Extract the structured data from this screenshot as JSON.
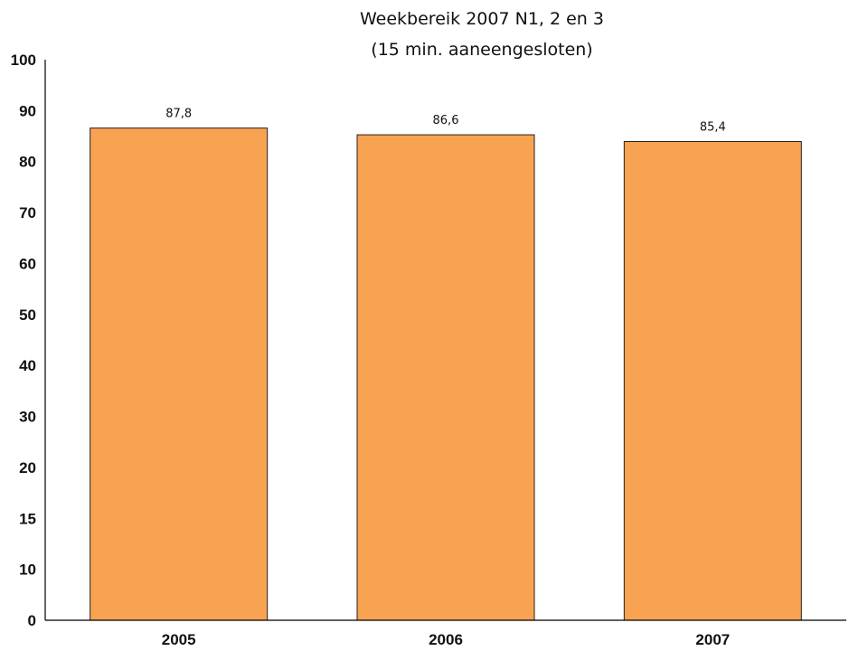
{
  "chart_data": {
    "type": "bar",
    "title": "Weekbereik 2007 N1, 2 en 3",
    "subtitle": "(15 min. aaneengesloten)",
    "categories": [
      "2005",
      "2006",
      "2007"
    ],
    "values": [
      87.8,
      86.6,
      85.4
    ],
    "value_labels": [
      "87,8",
      "86,6",
      "85,4"
    ],
    "y_ticks": [
      "0",
      "10",
      "15",
      "20",
      "30",
      "40",
      "50",
      "60",
      "70",
      "80",
      "90",
      "100"
    ],
    "ylim": [
      0,
      100
    ],
    "xlabel": "",
    "ylabel": "",
    "grid": false,
    "legend": "none",
    "bar_color": "#F8A351",
    "bar_edge_color": "#222222"
  }
}
